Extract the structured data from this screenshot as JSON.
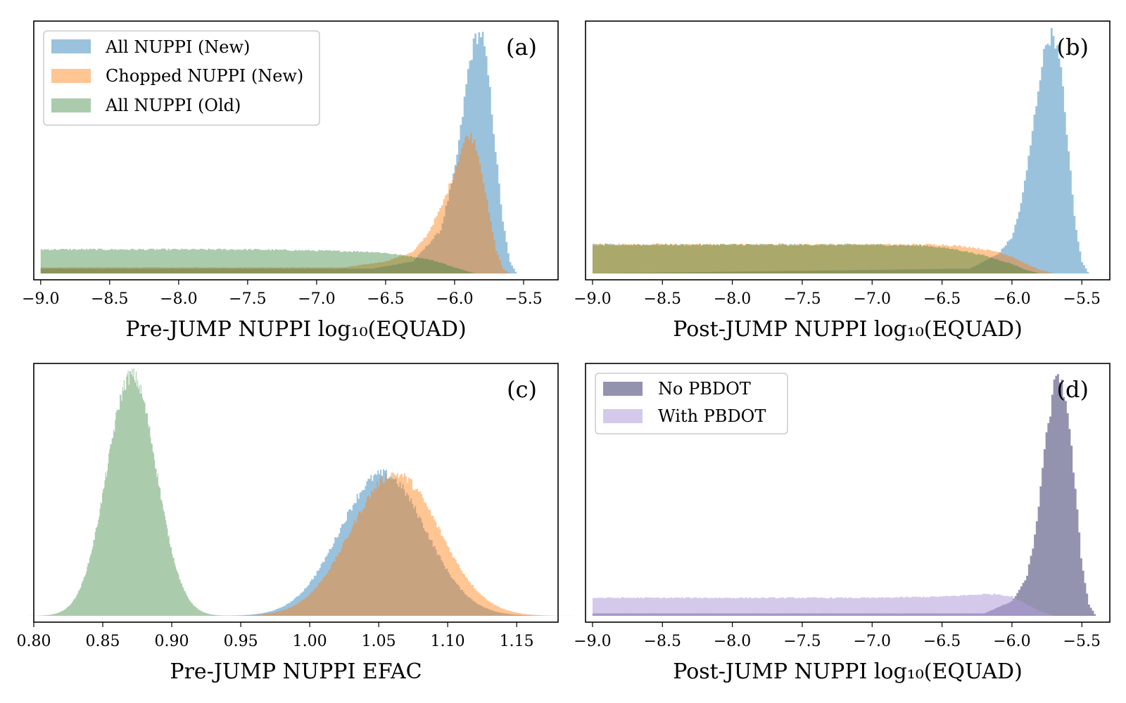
{
  "chart_data": [
    {
      "type": "histogram",
      "panel_label": "(a)",
      "xlabel": "Pre-JUMP NUPPI log₁₀(EQUAD)",
      "ylabel": "",
      "xlim": [
        -9.05,
        -5.25
      ],
      "ylim": [
        0,
        1
      ],
      "xticks": [
        -9.0,
        -8.5,
        -8.0,
        -7.5,
        -7.0,
        -6.5,
        -6.0,
        -5.5
      ],
      "xtick_labels": [
        "−9.0",
        "−8.5",
        "−8.0",
        "−7.5",
        "−7.0",
        "−6.5",
        "−6.0",
        "−5.5"
      ],
      "legend_position": "top-left",
      "series": [
        {
          "name": "All NUPPI (New)",
          "color": "#1f77b4",
          "opacity": 0.45,
          "x": [
            -9.0,
            -6.6,
            -6.3,
            -6.1,
            -6.0,
            -5.95,
            -5.9,
            -5.85,
            -5.8,
            -5.75,
            -5.7,
            -5.65,
            -5.6,
            -5.55
          ],
          "density": [
            0.02,
            0.02,
            0.05,
            0.18,
            0.42,
            0.62,
            0.85,
            0.98,
            1.0,
            0.8,
            0.5,
            0.22,
            0.05,
            0.0
          ]
        },
        {
          "name": "Chopped NUPPI (New)",
          "color": "#ff7f0e",
          "opacity": 0.45,
          "x": [
            -9.0,
            -6.8,
            -6.5,
            -6.3,
            -6.2,
            -6.1,
            -6.0,
            -5.95,
            -5.9,
            -5.85,
            -5.8,
            -5.75,
            -5.7,
            -5.65,
            -5.6
          ],
          "density": [
            0.025,
            0.025,
            0.05,
            0.09,
            0.16,
            0.27,
            0.42,
            0.52,
            0.58,
            0.55,
            0.42,
            0.25,
            0.1,
            0.02,
            0.0
          ]
        },
        {
          "name": "All NUPPI (Old)",
          "color": "#2e7d32",
          "opacity": 0.4,
          "x": [
            -9.0,
            -8.5,
            -8.0,
            -7.5,
            -7.0,
            -6.6,
            -6.5,
            -6.3,
            -6.2,
            -6.1,
            -6.0,
            -5.9,
            -5.85
          ],
          "density": [
            0.1,
            0.1,
            0.1,
            0.1,
            0.095,
            0.09,
            0.085,
            0.07,
            0.06,
            0.045,
            0.025,
            0.008,
            0.0
          ]
        }
      ]
    },
    {
      "type": "histogram",
      "panel_label": "(b)",
      "xlabel": "Post-JUMP NUPPI log₁₀(EQUAD)",
      "ylabel": "",
      "xlim": [
        -9.05,
        -5.3
      ],
      "ylim": [
        0,
        1
      ],
      "xticks": [
        -9.0,
        -8.5,
        -8.0,
        -7.5,
        -7.0,
        -6.5,
        -6.0,
        -5.5
      ],
      "xtick_labels": [
        "−9.0",
        "−8.5",
        "−8.0",
        "−7.5",
        "−7.0",
        "−6.5",
        "−6.0",
        "−5.5"
      ],
      "series": [
        {
          "name": "All NUPPI (New)",
          "color": "#1f77b4",
          "opacity": 0.45,
          "x": [
            -9.0,
            -6.3,
            -6.1,
            -6.0,
            -5.95,
            -5.9,
            -5.85,
            -5.8,
            -5.75,
            -5.7,
            -5.65,
            -5.6,
            -5.55,
            -5.5,
            -5.45
          ],
          "density": [
            0.0,
            0.02,
            0.08,
            0.15,
            0.25,
            0.4,
            0.6,
            0.82,
            0.97,
            1.0,
            0.85,
            0.55,
            0.22,
            0.05,
            0.0
          ]
        },
        {
          "name": "Chopped NUPPI (New)",
          "color": "#ff7f0e",
          "opacity": 0.45,
          "x": [
            -9.0,
            -8.0,
            -7.0,
            -6.5,
            -6.3,
            -6.1,
            -6.0,
            -5.9,
            -5.8,
            -5.7
          ],
          "density": [
            0.12,
            0.12,
            0.12,
            0.12,
            0.11,
            0.09,
            0.07,
            0.04,
            0.015,
            0.0
          ]
        },
        {
          "name": "All NUPPI (Old)",
          "color": "#2e7d32",
          "opacity": 0.4,
          "x": [
            -9.0,
            -8.0,
            -7.0,
            -6.6,
            -6.4,
            -6.2,
            -6.0,
            -5.9,
            -5.8
          ],
          "density": [
            0.12,
            0.12,
            0.12,
            0.115,
            0.1,
            0.075,
            0.04,
            0.015,
            0.0
          ]
        }
      ]
    },
    {
      "type": "histogram",
      "panel_label": "(c)",
      "xlabel": "Pre-JUMP NUPPI EFAC",
      "ylabel": "",
      "xlim": [
        0.8,
        1.18
      ],
      "ylim": [
        0,
        1
      ],
      "xticks": [
        0.8,
        0.85,
        0.9,
        0.95,
        1.0,
        1.05,
        1.1,
        1.15
      ],
      "xtick_labels": [
        "0.80",
        "0.85",
        "0.90",
        "0.95",
        "1.00",
        "1.05",
        "1.10",
        "1.15"
      ],
      "series": [
        {
          "name": "All NUPPI (New)",
          "color": "#1f77b4",
          "opacity": 0.45,
          "mean": 1.053,
          "std": 0.031,
          "peak": 0.59
        },
        {
          "name": "Chopped NUPPI (New)",
          "color": "#ff7f0e",
          "opacity": 0.45,
          "mean": 1.062,
          "std": 0.032,
          "peak": 0.59
        },
        {
          "name": "All NUPPI (Old)",
          "color": "#2e7d32",
          "opacity": 0.4,
          "mean": 0.871,
          "std": 0.018,
          "peak": 1.0
        }
      ]
    },
    {
      "type": "histogram",
      "panel_label": "(d)",
      "xlabel": "Post-JUMP NUPPI log₁₀(EQUAD)",
      "ylabel": "",
      "xlim": [
        -9.05,
        -5.3
      ],
      "ylim": [
        0,
        1
      ],
      "xticks": [
        -9.0,
        -8.5,
        -8.0,
        -7.5,
        -7.0,
        -6.5,
        -6.0,
        -5.5
      ],
      "xtick_labels": [
        "−9.0",
        "−8.5",
        "−8.0",
        "−7.5",
        "−7.0",
        "−6.5",
        "−6.0",
        "−5.5"
      ],
      "legend_position": "top-left",
      "series": [
        {
          "name": "No PBDOT",
          "color": "#3b3b6e",
          "opacity": 0.55,
          "x": [
            -9.0,
            -6.2,
            -6.0,
            -5.9,
            -5.85,
            -5.8,
            -5.75,
            -5.7,
            -5.65,
            -5.6,
            -5.55,
            -5.5,
            -5.45,
            -5.4
          ],
          "density": [
            0.01,
            0.01,
            0.06,
            0.15,
            0.28,
            0.5,
            0.76,
            0.95,
            1.0,
            0.85,
            0.55,
            0.22,
            0.05,
            0.0
          ]
        },
        {
          "name": "With PBDOT",
          "color": "#b39ddb",
          "opacity": 0.55,
          "x": [
            -9.0,
            -7.0,
            -6.5,
            -6.2,
            -6.1,
            -6.0,
            -5.9,
            -5.8,
            -5.7
          ],
          "density": [
            0.075,
            0.075,
            0.08,
            0.09,
            0.09,
            0.08,
            0.05,
            0.02,
            0.0
          ]
        }
      ]
    }
  ]
}
